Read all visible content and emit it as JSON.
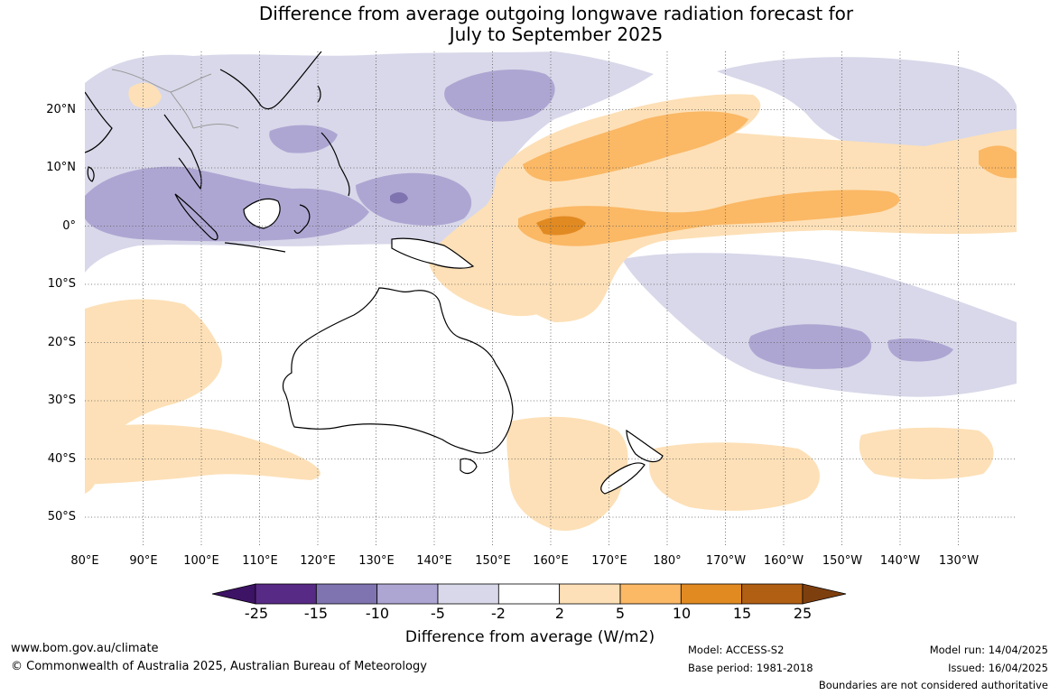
{
  "title": {
    "line1": "Difference from average outgoing longwave radiation forecast for",
    "line2": "July to September 2025"
  },
  "lat_labels": [
    "20°N",
    "10°N",
    "0°",
    "10°S",
    "20°S",
    "30°S",
    "40°S",
    "50°S"
  ],
  "lon_labels": [
    "80°E",
    "90°E",
    "100°E",
    "110°E",
    "120°E",
    "130°E",
    "140°E",
    "150°E",
    "160°E",
    "170°E",
    "180°",
    "170°W",
    "160°W",
    "150°W",
    "140°W",
    "130°W"
  ],
  "colorbar": {
    "ticks": [
      "-25",
      "-15",
      "-10",
      "-5",
      "-2",
      "2",
      "5",
      "10",
      "15",
      "25"
    ],
    "colors": [
      "#3d1365",
      "#572a86",
      "#7f74b0",
      "#aea6d2",
      "#d8d8ea",
      "#ffffff",
      "#fde0b7",
      "#fbb865",
      "#e18a22",
      "#b15f12",
      "#7e3f0e"
    ],
    "label": "Difference from average (W/m2)"
  },
  "footer": {
    "url": "www.bom.gov.au/climate",
    "copyright": "© Commonwealth of Australia 2025, Australian Bureau of Meteorology",
    "model": "Model: ACCESS-S2",
    "base_period": "Base period: 1981-2018",
    "model_run": "Model run: 14/04/2025",
    "issued": "Issued: 16/04/2025",
    "disclaimer": "Boundaries are not considered authoritative"
  }
}
